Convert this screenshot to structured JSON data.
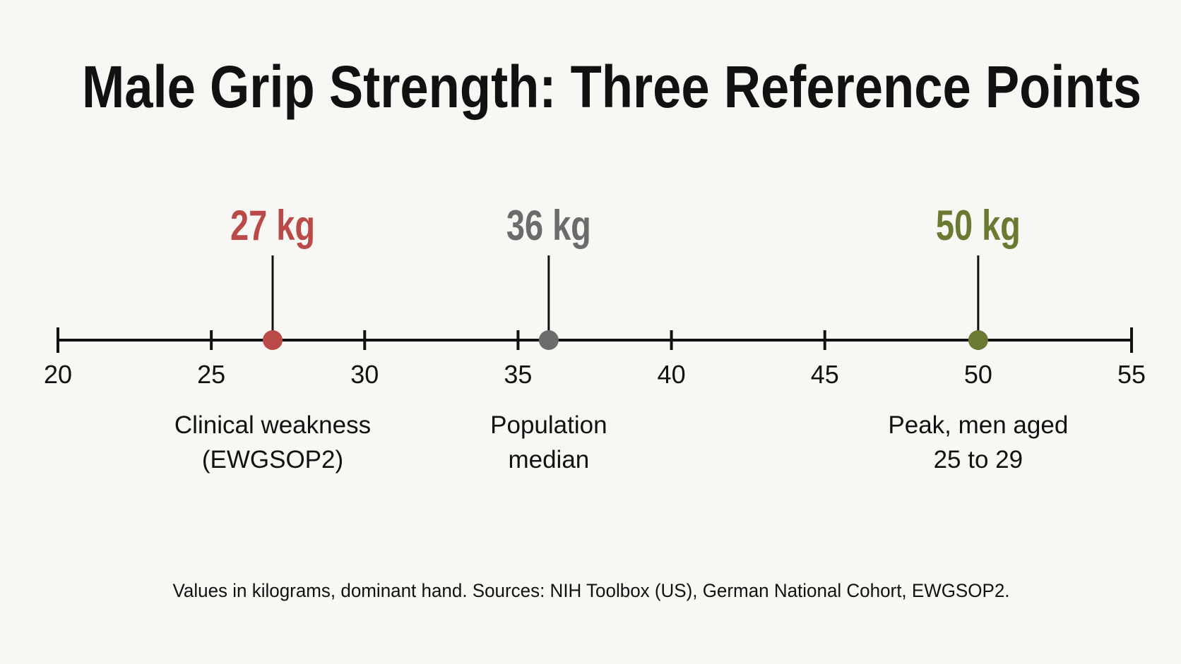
{
  "chart_data": {
    "type": "scatter",
    "title": "Male Grip Strength: Three Reference Points",
    "xlabel": "",
    "ylabel": "",
    "xlim": [
      20,
      55
    ],
    "x_ticks": [
      20,
      25,
      30,
      35,
      40,
      45,
      50,
      55
    ],
    "grid": false,
    "legend": "none",
    "markers": [
      {
        "x": 27,
        "value_label": "27 kg",
        "desc": [
          "Clinical weakness",
          "(EWGSOP2)"
        ],
        "color": "#b94a48"
      },
      {
        "x": 36,
        "value_label": "36 kg",
        "desc": [
          "Population",
          "median"
        ],
        "color": "#6b6b6b"
      },
      {
        "x": 50,
        "value_label": "50 kg",
        "desc": [
          "Peak, men aged",
          "25 to 29"
        ],
        "color": "#6a7a32"
      }
    ],
    "footnote": "Values in kilograms, dominant hand. Sources: NIH Toolbox (US), German National Cohort, EWGSOP2."
  },
  "colors": {
    "background": "#f8f7f3",
    "axis": "#111111",
    "text": "#111111"
  }
}
